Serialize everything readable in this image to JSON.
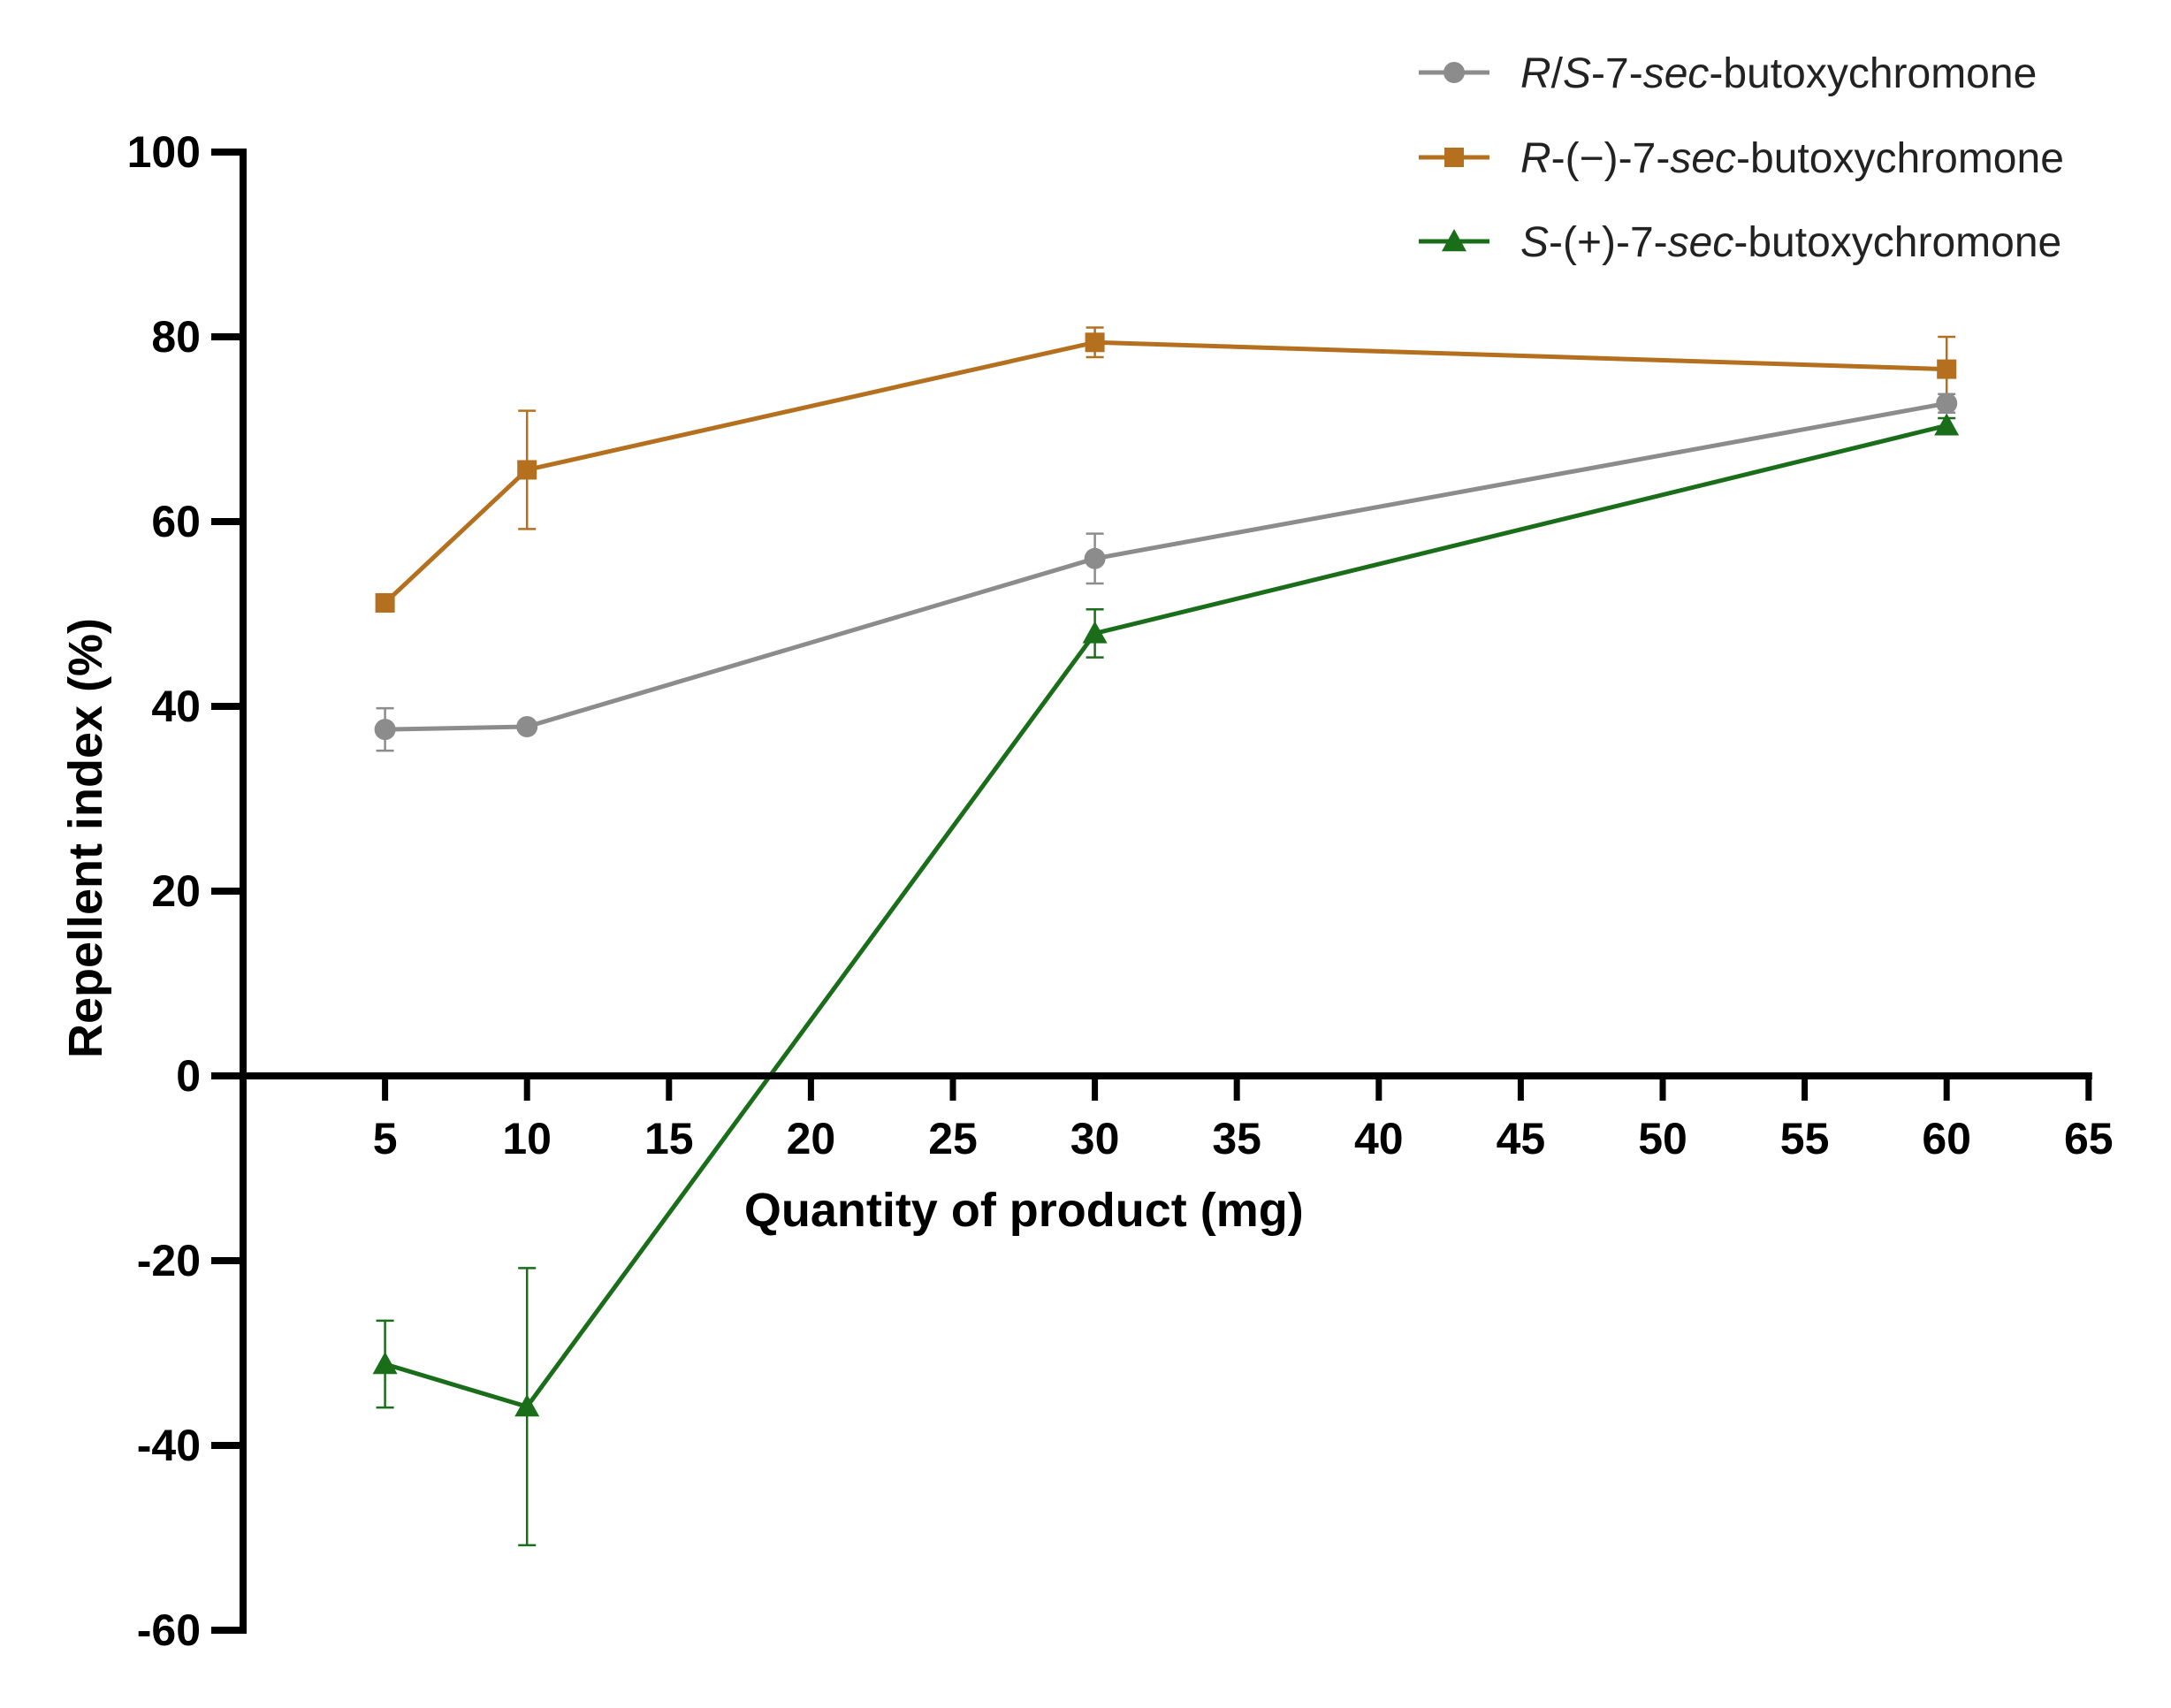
{
  "chart_data": {
    "type": "line",
    "title": "",
    "xlabel": "Quantity of product (mg)",
    "ylabel": "Repellent index (%)",
    "xlim": [
      0,
      65
    ],
    "ylim": [
      -60,
      100
    ],
    "x_ticks": [
      "5",
      "10",
      "15",
      "20",
      "25",
      "30",
      "35",
      "40",
      "45",
      "50",
      "55",
      "60",
      "65"
    ],
    "y_ticks": [
      "-60",
      "-40",
      "-20",
      "0",
      "20",
      "40",
      "60",
      "80",
      "100"
    ],
    "grid": false,
    "legend_position": "top-right",
    "series": [
      {
        "name": "R/S-7-sec-butoxychromone",
        "name_parts": [
          {
            "text": "R",
            "italic": true
          },
          {
            "text": "/",
            "italic": false
          },
          {
            "text": "S",
            "italic": true
          },
          {
            "text": "-7-",
            "italic": false
          },
          {
            "text": "sec",
            "italic": true
          },
          {
            "text": "-butoxychromone",
            "italic": false
          }
        ],
        "color": "#8c8c8c",
        "marker": "circle",
        "x": [
          5,
          10,
          30,
          60
        ],
        "values": [
          37.5,
          37.8,
          56.0,
          72.8
        ],
        "errors": [
          2.3,
          0.4,
          2.7,
          1.0
        ]
      },
      {
        "name": "R-(−)-7-sec-butoxychromone",
        "name_parts": [
          {
            "text": "R",
            "italic": true
          },
          {
            "text": "-(−)-7-",
            "italic": false
          },
          {
            "text": "sec",
            "italic": true
          },
          {
            "text": "-butoxychromone",
            "italic": false
          }
        ],
        "color": "#b5701f",
        "marker": "square",
        "x": [
          5,
          10,
          30,
          60
        ],
        "values": [
          51.2,
          65.6,
          79.4,
          76.5
        ],
        "errors": [
          0.5,
          6.4,
          1.6,
          3.5
        ]
      },
      {
        "name": "S-(+)-7-sec-butoxychromone",
        "name_parts": [
          {
            "text": "S",
            "italic": true
          },
          {
            "text": "-(+)-7-",
            "italic": false
          },
          {
            "text": "sec",
            "italic": true
          },
          {
            "text": "-butoxychromone",
            "italic": false
          }
        ],
        "color": "#1a6e1a",
        "marker": "triangle",
        "x": [
          5,
          10,
          30,
          60
        ],
        "values": [
          -31.2,
          -35.8,
          47.9,
          70.4
        ],
        "errors": [
          4.7,
          15.0,
          2.6,
          0.8
        ]
      }
    ]
  }
}
